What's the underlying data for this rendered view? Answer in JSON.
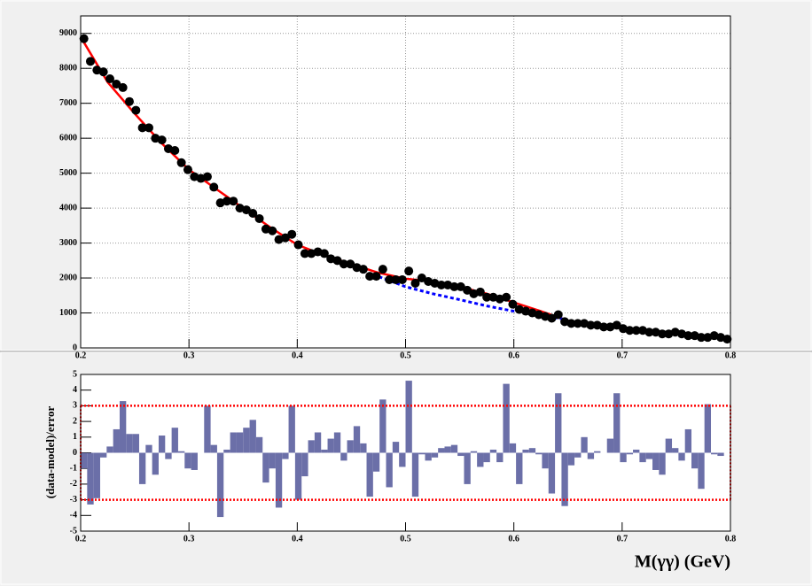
{
  "chart_data": [
    {
      "type": "scatter",
      "x": [
        0.203,
        0.209,
        0.215,
        0.221,
        0.227,
        0.233,
        0.239,
        0.245,
        0.251,
        0.257,
        0.263,
        0.269,
        0.275,
        0.281,
        0.287,
        0.293,
        0.299,
        0.305,
        0.311,
        0.317,
        0.323,
        0.329,
        0.335,
        0.341,
        0.347,
        0.353,
        0.359,
        0.365,
        0.371,
        0.377,
        0.383,
        0.389,
        0.395,
        0.401,
        0.407,
        0.413,
        0.419,
        0.425,
        0.431,
        0.437,
        0.443,
        0.449,
        0.455,
        0.461,
        0.467,
        0.473,
        0.479,
        0.485,
        0.491,
        0.497,
        0.503,
        0.509,
        0.515,
        0.521,
        0.527,
        0.533,
        0.539,
        0.545,
        0.551,
        0.557,
        0.563,
        0.569,
        0.575,
        0.581,
        0.587,
        0.593,
        0.599,
        0.605,
        0.611,
        0.617,
        0.623,
        0.629,
        0.635,
        0.641,
        0.647,
        0.653,
        0.659,
        0.665,
        0.671,
        0.677,
        0.683,
        0.689,
        0.695,
        0.701,
        0.707,
        0.713,
        0.719,
        0.725,
        0.731,
        0.737,
        0.743,
        0.749,
        0.755,
        0.761,
        0.767,
        0.773,
        0.779,
        0.785,
        0.791,
        0.797
      ],
      "values": [
        8850,
        8200,
        7950,
        7900,
        7700,
        7550,
        7450,
        7050,
        6800,
        6300,
        6300,
        6000,
        5950,
        5700,
        5650,
        5300,
        5100,
        4900,
        4850,
        4900,
        4600,
        4150,
        4200,
        4200,
        4000,
        3950,
        3850,
        3700,
        3400,
        3350,
        3100,
        3150,
        3250,
        2950,
        2700,
        2700,
        2750,
        2700,
        2550,
        2500,
        2400,
        2400,
        2300,
        2250,
        2050,
        2050,
        2250,
        1950,
        1950,
        1950,
        2200,
        1850,
        2000,
        1900,
        1850,
        1800,
        1800,
        1750,
        1750,
        1650,
        1550,
        1600,
        1450,
        1450,
        1400,
        1450,
        1250,
        1100,
        1050,
        1000,
        950,
        900,
        850,
        950,
        750,
        700,
        700,
        700,
        650,
        650,
        600,
        600,
        650,
        550,
        500,
        500,
        500,
        450,
        450,
        400,
        400,
        450,
        400,
        350,
        350,
        300,
        300,
        350,
        300,
        250
      ],
      "color": "#000000",
      "lines": [
        {
          "x": [
            0.2,
            0.225,
            0.25,
            0.275,
            0.3,
            0.325,
            0.35,
            0.375,
            0.4,
            0.425,
            0.45,
            0.475,
            0.5,
            0.525,
            0.55,
            0.575,
            0.6,
            0.625,
            0.65,
            0.675,
            0.7,
            0.725,
            0.75,
            0.775,
            0.8
          ],
          "values": [
            8900,
            7600,
            6700,
            5850,
            5100,
            4550,
            4000,
            3450,
            2950,
            2650,
            2400,
            2150,
            1980,
            1900,
            1750,
            1550,
            1300,
            1050,
            780,
            650,
            560,
            470,
            400,
            330,
            270
          ],
          "color": "#ff0000",
          "style": "solid"
        },
        {
          "x": [
            0.47,
            0.5,
            0.525,
            0.55,
            0.575,
            0.6,
            0.625,
            0.645
          ],
          "values": [
            2100,
            1750,
            1550,
            1380,
            1200,
            1050,
            920,
            830
          ],
          "color": "#0000ff",
          "style": "dashed"
        }
      ],
      "xlim": [
        0.2,
        0.8
      ],
      "xticks": [
        0.2,
        0.3,
        0.4,
        0.5,
        0.6,
        0.7,
        0.8
      ],
      "ylim": [
        0,
        9500
      ],
      "yticks": [
        0,
        1000,
        2000,
        3000,
        4000,
        5000,
        6000,
        7000,
        8000,
        9000
      ],
      "grid": true
    },
    {
      "type": "histogram",
      "bins": [
        0.2,
        0.206,
        0.212,
        0.218,
        0.224,
        0.23,
        0.236,
        0.242,
        0.248,
        0.254,
        0.26,
        0.266,
        0.272,
        0.278,
        0.284,
        0.29,
        0.296,
        0.302,
        0.308,
        0.314,
        0.32,
        0.326,
        0.332,
        0.338,
        0.344,
        0.35,
        0.356,
        0.362,
        0.368,
        0.374,
        0.38,
        0.386,
        0.392,
        0.398,
        0.404,
        0.41,
        0.416,
        0.422,
        0.428,
        0.434,
        0.44,
        0.446,
        0.452,
        0.458,
        0.464,
        0.47,
        0.476,
        0.482,
        0.488,
        0.494,
        0.5,
        0.506,
        0.512,
        0.518,
        0.524,
        0.53,
        0.536,
        0.542,
        0.548,
        0.554,
        0.56,
        0.566,
        0.572,
        0.578,
        0.584,
        0.59,
        0.596,
        0.602,
        0.608,
        0.614,
        0.62,
        0.626,
        0.632,
        0.638,
        0.644,
        0.65,
        0.656,
        0.662,
        0.668,
        0.674,
        0.68,
        0.686,
        0.692,
        0.698,
        0.704,
        0.71,
        0.716,
        0.722,
        0.728,
        0.734,
        0.74,
        0.746,
        0.752,
        0.758,
        0.764,
        0.77,
        0.776,
        0.782,
        0.788,
        0.794,
        0.8
      ],
      "values": [
        -1.0,
        -3.3,
        -2.9,
        -0.3,
        0.4,
        1.5,
        3.3,
        1.2,
        1.2,
        -2.0,
        0.5,
        -1.4,
        1.1,
        -0.4,
        1.6,
        0.1,
        -1.0,
        -1.1,
        0.0,
        3.0,
        0.5,
        -4.1,
        0.2,
        1.3,
        1.3,
        1.6,
        2.1,
        1.0,
        -1.9,
        -1.0,
        -3.5,
        -0.4,
        3.0,
        -3.0,
        -1.5,
        0.8,
        1.3,
        0.2,
        0.9,
        1.3,
        -0.5,
        0.8,
        1.7,
        0.6,
        -2.8,
        -1.2,
        3.4,
        -2.2,
        0.7,
        -0.9,
        4.6,
        -2.8,
        -0.1,
        -0.5,
        -0.3,
        0.3,
        0.4,
        0.5,
        -0.2,
        -2.0,
        0.1,
        -0.9,
        -0.6,
        0.2,
        -0.6,
        4.4,
        0.6,
        -2.0,
        0.2,
        0.3,
        -0.1,
        -1.0,
        -2.6,
        3.8,
        -3.4,
        -0.8,
        -0.3,
        1.0,
        -0.4,
        0.1,
        0.0,
        0.9,
        3.8,
        -0.6,
        -0.1,
        0.2,
        -0.6,
        -0.4,
        -1.1,
        -1.4,
        0.9,
        0.3,
        -0.5,
        1.5,
        -1.0,
        -2.3,
        3.1,
        -0.1,
        -0.2,
        0.0
      ],
      "color": "#6b6fa8",
      "reference_lines": [
        3,
        -3
      ],
      "reference_color": "#ff0000",
      "xlim": [
        0.2,
        0.8
      ],
      "xticks": [
        0.2,
        0.3,
        0.4,
        0.5,
        0.6,
        0.7,
        0.8
      ],
      "ylim": [
        -5,
        5
      ],
      "yticks": [
        -5,
        -4,
        -3,
        -2,
        -1,
        0,
        1,
        2,
        3,
        4,
        5
      ],
      "grid": false,
      "xlabel": "M(γγ) (GeV)",
      "ylabel": "(data-model)/error"
    }
  ]
}
